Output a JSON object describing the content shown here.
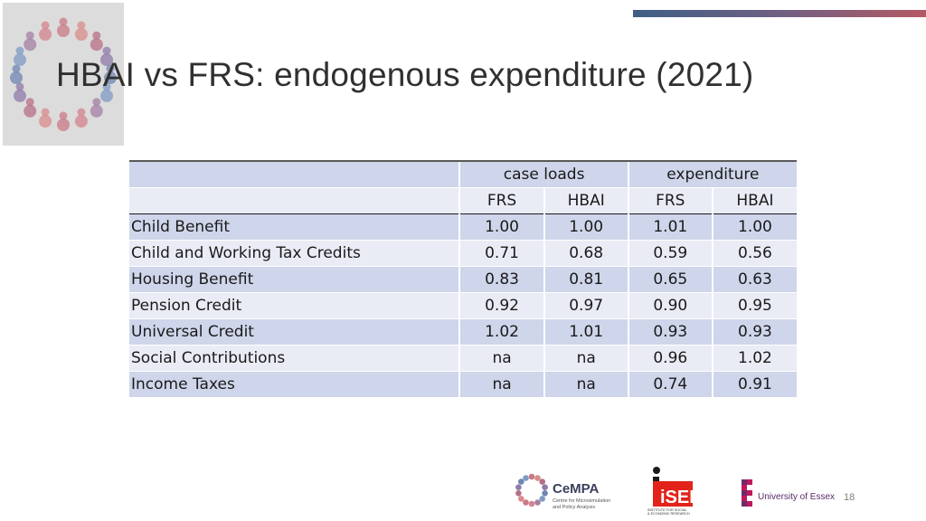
{
  "slide": {
    "title": "HBAI vs FRS: endogenous expenditure (2021)",
    "page_number": "18",
    "accent_gradient": [
      "#3f5f86",
      "#b45a63"
    ]
  },
  "table": {
    "group_headers": [
      "case loads",
      "expenditure"
    ],
    "sub_headers": [
      "FRS",
      "HBAI",
      "FRS",
      "HBAI"
    ],
    "rows": [
      {
        "label": "Child Benefit",
        "values": [
          "1.00",
          "1.00",
          "1.01",
          "1.00"
        ]
      },
      {
        "label": "Child and Working Tax Credits",
        "values": [
          "0.71",
          "0.68",
          "0.59",
          "0.56"
        ]
      },
      {
        "label": "Housing Benefit",
        "values": [
          "0.83",
          "0.81",
          "0.65",
          "0.63"
        ]
      },
      {
        "label": "Pension Credit",
        "values": [
          "0.92",
          "0.97",
          "0.90",
          "0.95"
        ]
      },
      {
        "label": "Universal Credit",
        "values": [
          "1.02",
          "1.01",
          "0.93",
          "0.93"
        ]
      },
      {
        "label": "Social Contributions",
        "values": [
          "na",
          "na",
          "0.96",
          "1.02"
        ]
      },
      {
        "label": "Income Taxes",
        "values": [
          "na",
          "na",
          "0.74",
          "0.91"
        ]
      }
    ]
  },
  "logos": {
    "cempa": {
      "name": "CeMPA",
      "line1": "Centre for Microsimulation",
      "line2": "and Policy Analysis"
    },
    "iser": {
      "name": "iSER",
      "line1": "INSTITUTE FOR SOCIAL",
      "line2": "& ECONOMIC RESEARCH"
    },
    "essex": {
      "name": "University of Essex"
    }
  }
}
